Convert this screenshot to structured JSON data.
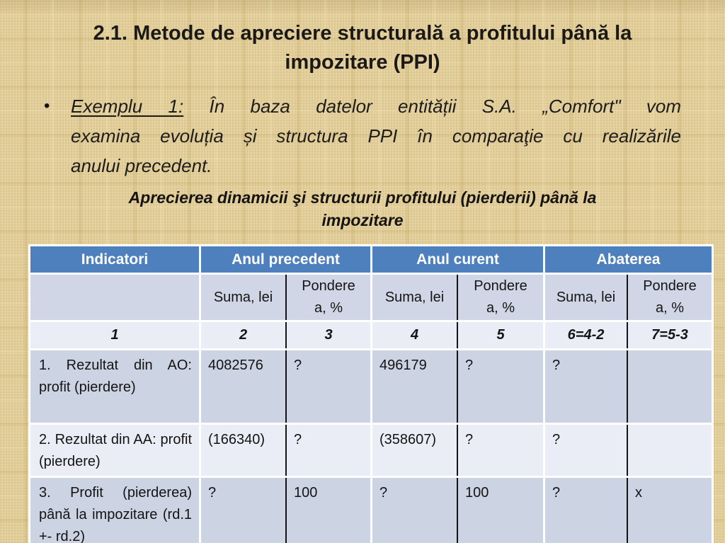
{
  "slide": {
    "title": "2.1. Metode de apreciere structurală a profitului până la\nimpozitare (PPI)",
    "bullet": {
      "marker": "•",
      "lead": "Exemplu 1:",
      "lines": [
        " În baza datelor entității S.A. „Comfort\" vom",
        "examina evoluția și structura PPI în comparaţie cu realizările",
        "anului precedent."
      ]
    },
    "table_caption": "Aprecierea dinamicii şi structurii profitului (pierderii) până la\nimpozitare",
    "colors": {
      "background_linen": "#e7d4a0",
      "accent_blue": "#4e80bd",
      "header_text": "#ffffff",
      "subheader_band": "#d0d6e5",
      "band_dark": "#ccd3e3",
      "band_light": "#eaedf5",
      "divider_black": "#141414",
      "cell_border_white": "#ffffff",
      "body_text": "#1e1c1a"
    }
  },
  "table": {
    "header": [
      "Indicatori",
      "Anul precedent",
      "Anul curent",
      "Abaterea"
    ],
    "subheader": {
      "suma": "Suma, lei",
      "pondere": "Pondere\na, %"
    },
    "numbering": [
      "1",
      "2",
      "3",
      "4",
      "5",
      "6=4-2",
      "7=5-3"
    ],
    "rows": [
      {
        "label": "1. Rezultat din AO: profit (pierdere)",
        "cells": [
          "4082576",
          "?",
          "496179",
          "?",
          "?",
          ""
        ]
      },
      {
        "label": "2. Rezultat din AA: profit (pierdere)",
        "cells": [
          "(166340)",
          "?",
          "(358607)",
          "?",
          "?",
          ""
        ]
      },
      {
        "label": "3. Profit (pierderea) până la impozitare (rd.1 +- rd.2)",
        "cells": [
          "?",
          "100",
          "?",
          "100",
          "?",
          "x"
        ]
      }
    ]
  }
}
